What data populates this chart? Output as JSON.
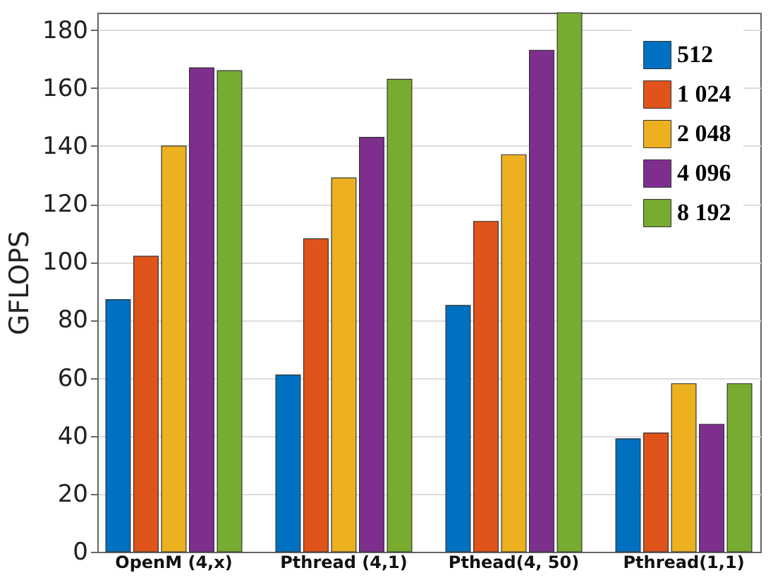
{
  "chart_data": {
    "type": "bar",
    "ylabel": "GFLOPS",
    "categories": [
      "OpenM (4,x)",
      "Pthread (4,1)",
      "Pthead(4, 50)",
      "Pthread(1,1)"
    ],
    "series": [
      {
        "name": "512",
        "color": "#0070c0",
        "values": [
          87,
          61,
          85,
          39
        ]
      },
      {
        "name": "1 024",
        "color": "#e0531a",
        "values": [
          102,
          108,
          114,
          41
        ]
      },
      {
        "name": "2 048",
        "color": "#edb120",
        "values": [
          140,
          129,
          137,
          58
        ]
      },
      {
        "name": "4 096",
        "color": "#7e2f8e",
        "values": [
          167,
          143,
          173,
          44
        ]
      },
      {
        "name": "8 192",
        "color": "#77ac30",
        "values": [
          166,
          163,
          186,
          58
        ]
      }
    ],
    "ylim": [
      0,
      186
    ],
    "yticks": [
      0,
      20,
      40,
      60,
      80,
      100,
      120,
      140,
      160,
      180
    ],
    "grid": "y",
    "legend": "top right"
  }
}
